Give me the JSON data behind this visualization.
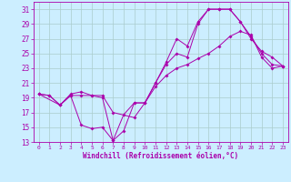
{
  "xlabel": "Windchill (Refroidissement éolien,°C)",
  "background_color": "#cceeff",
  "grid_color": "#aacccc",
  "line_color": "#aa00aa",
  "xlim": [
    -0.5,
    23.5
  ],
  "ylim": [
    13,
    32
  ],
  "xticks": [
    0,
    1,
    2,
    3,
    4,
    5,
    6,
    7,
    8,
    9,
    10,
    11,
    12,
    13,
    14,
    15,
    16,
    17,
    18,
    19,
    20,
    21,
    22,
    23
  ],
  "yticks": [
    13,
    15,
    17,
    19,
    21,
    23,
    25,
    27,
    29,
    31
  ],
  "line1_x": [
    0,
    1,
    2,
    3,
    4,
    5,
    6,
    7,
    8,
    9,
    10,
    11,
    12,
    13,
    14,
    15,
    16,
    17,
    18,
    19,
    20,
    21,
    22,
    23
  ],
  "line1_y": [
    19.5,
    19.3,
    18.0,
    19.3,
    19.3,
    19.3,
    19.0,
    13.2,
    14.5,
    18.3,
    18.3,
    21.0,
    23.5,
    25.0,
    24.5,
    29.0,
    31.0,
    31.0,
    31.0,
    29.3,
    27.0,
    25.3,
    24.5,
    23.3
  ],
  "line2_x": [
    0,
    1,
    2,
    3,
    4,
    5,
    6,
    7,
    9,
    10,
    11,
    12,
    13,
    14,
    15,
    16,
    17,
    18,
    19,
    20,
    21,
    22,
    23
  ],
  "line2_y": [
    19.5,
    19.3,
    18.0,
    19.5,
    19.8,
    19.3,
    19.3,
    17.0,
    16.3,
    18.3,
    21.0,
    23.8,
    27.0,
    26.0,
    29.3,
    31.0,
    31.0,
    31.0,
    29.3,
    27.3,
    25.0,
    23.5,
    23.3
  ],
  "line3_x": [
    0,
    2,
    3,
    4,
    5,
    6,
    7,
    8,
    9,
    10,
    11,
    12,
    13,
    14,
    15,
    16,
    17,
    18,
    19,
    20,
    21,
    22,
    23
  ],
  "line3_y": [
    19.5,
    18.0,
    19.3,
    15.3,
    14.8,
    15.0,
    13.2,
    16.7,
    18.3,
    18.3,
    20.5,
    22.0,
    23.0,
    23.5,
    24.3,
    25.0,
    26.0,
    27.3,
    28.0,
    27.5,
    24.5,
    23.0,
    23.3
  ]
}
